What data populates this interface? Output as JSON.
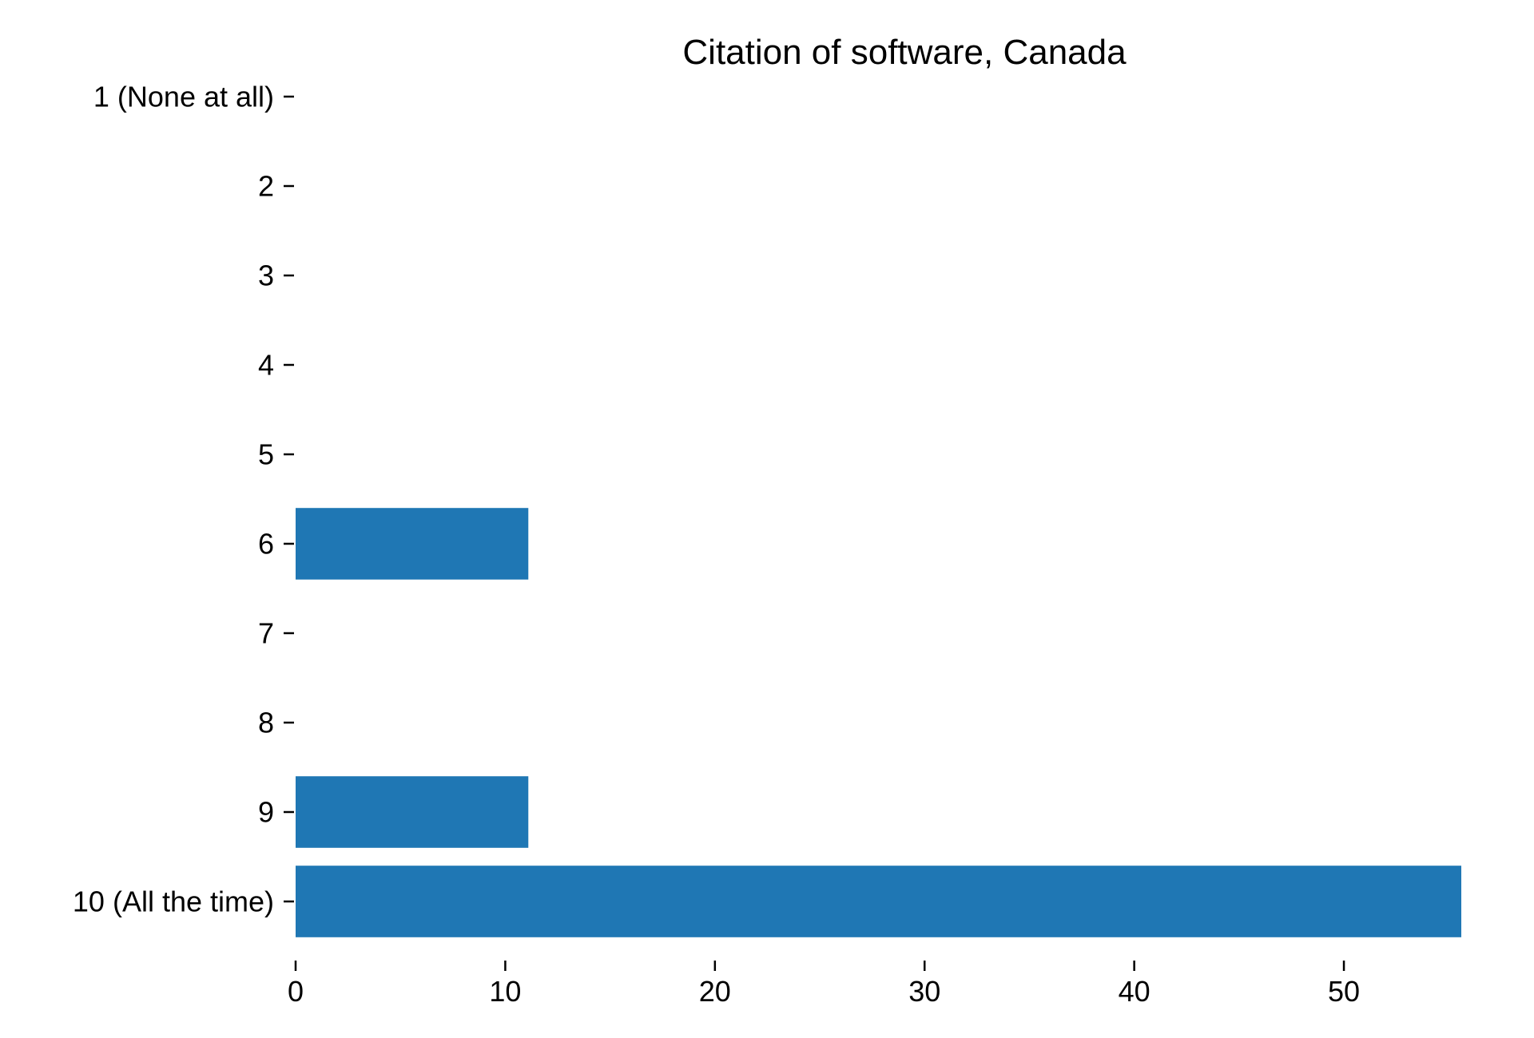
{
  "chart_data": {
    "type": "bar",
    "orientation": "horizontal",
    "title": "Citation of software, Canada",
    "xlabel": "",
    "ylabel": "",
    "categories": [
      "1 (None at all)",
      "2",
      "3",
      "4",
      "5",
      "6",
      "7",
      "8",
      "9",
      "10 (All the time)"
    ],
    "values": [
      0,
      0,
      0,
      0,
      0,
      11.1,
      0,
      0,
      11.1,
      55.6
    ],
    "xlim": [
      0,
      55.6
    ],
    "xticks": [
      0,
      10,
      20,
      30,
      40,
      50
    ],
    "grid": false,
    "legend": "none",
    "bar_color": "#1f77b4"
  }
}
